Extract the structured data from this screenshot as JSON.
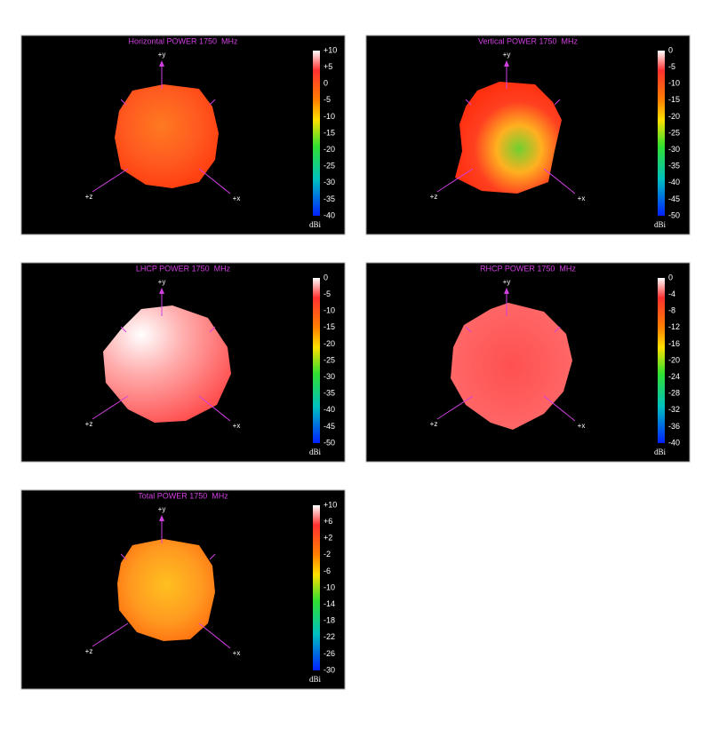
{
  "panels": [
    {
      "title": "Horizontal POWER 1750  MHz",
      "colorbar": {
        "ticks": [
          "+10",
          "+5",
          "0",
          "-5",
          "-10",
          "-15",
          "-20",
          "-25",
          "-30",
          "-35",
          "-40"
        ],
        "unit": "dBi"
      },
      "axes": {
        "y": "+y",
        "x": "+x",
        "z": "+z"
      }
    },
    {
      "title": "Vertical POWER 1750  MHz",
      "colorbar": {
        "ticks": [
          "0",
          "-5",
          "-10",
          "-15",
          "-20",
          "-25",
          "-30",
          "-35",
          "-40",
          "-45",
          "-50"
        ],
        "unit": "dBi"
      },
      "axes": {
        "y": "+y",
        "x": "+x",
        "z": "+z"
      }
    },
    {
      "title": "LHCP POWER 1750  MHz",
      "colorbar": {
        "ticks": [
          "0",
          "-5",
          "-10",
          "-15",
          "-20",
          "-25",
          "-30",
          "-35",
          "-40",
          "-45",
          "-50"
        ],
        "unit": "dBi"
      },
      "axes": {
        "y": "+y",
        "x": "+x",
        "z": "+z"
      }
    },
    {
      "title": "RHCP POWER 1750  MHz",
      "colorbar": {
        "ticks": [
          "0",
          "-4",
          "-8",
          "-12",
          "-16",
          "-20",
          "-24",
          "-28",
          "-32",
          "-36",
          "-40"
        ],
        "unit": "dBi"
      },
      "axes": {
        "y": "+y",
        "x": "+x",
        "z": "+z"
      }
    },
    {
      "title": "Total POWER 1750  MHz",
      "colorbar": {
        "ticks": [
          "+10",
          "+6",
          "+2",
          "-2",
          "-6",
          "-10",
          "-14",
          "-18",
          "-22",
          "-26",
          "-30"
        ],
        "unit": "dBi"
      },
      "axes": {
        "y": "+y",
        "x": "+x",
        "z": "+z"
      }
    }
  ]
}
